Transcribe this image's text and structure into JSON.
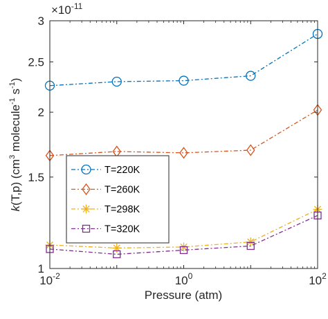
{
  "chart_data": {
    "type": "line",
    "title": "",
    "xlabel": "Pressure (atm)",
    "ylabel": "k(T,p) (cm³ molecule⁻¹ s⁻¹)",
    "ylabel_parts": {
      "k": "k",
      "args": "(T,p)",
      "units_open": " (cm",
      "exp3": "3",
      "units_mid": " molecule",
      "exp_m1a": "-1",
      "units_s": " s",
      "exp_m1b": "-1",
      "units_close": ")"
    },
    "x_scale": "log",
    "y_scale": "log",
    "xlim": [
      0.01,
      100
    ],
    "ylim": [
      1.0,
      3.0
    ],
    "x_ticks": [
      0.01,
      0.1,
      1,
      10,
      100
    ],
    "x_tick_labels": [
      {
        "base": "10",
        "exp": "-2"
      },
      {
        "base": "10",
        "exp": "0"
      },
      {
        "base": "10",
        "exp": "2"
      }
    ],
    "x_tick_label_values": [
      0.01,
      1,
      100
    ],
    "y_ticks": [
      1,
      1.5,
      2,
      2.5,
      3
    ],
    "y_tick_labels": [
      "1",
      "1.5",
      "2",
      "2.5",
      "3"
    ],
    "y_multiplier": {
      "base": "×10",
      "exp": "-11"
    },
    "grid": false,
    "legend_position": "center-left",
    "x": [
      0.01,
      0.1,
      1,
      10,
      100
    ],
    "series": [
      {
        "name": "T=220K",
        "color": "#0072BD",
        "marker": "circle",
        "values": [
          2.25,
          2.29,
          2.3,
          2.35,
          2.83
        ]
      },
      {
        "name": "T=260K",
        "color": "#D95319",
        "marker": "diamond",
        "values": [
          1.65,
          1.68,
          1.67,
          1.69,
          2.02
        ]
      },
      {
        "name": "T=298K",
        "color": "#EDB120",
        "marker": "asterisk",
        "values": [
          1.11,
          1.095,
          1.1,
          1.125,
          1.3
        ]
      },
      {
        "name": "T=320K",
        "color": "#7E2F8E",
        "marker": "square",
        "values": [
          1.09,
          1.065,
          1.085,
          1.105,
          1.265
        ]
      }
    ]
  }
}
